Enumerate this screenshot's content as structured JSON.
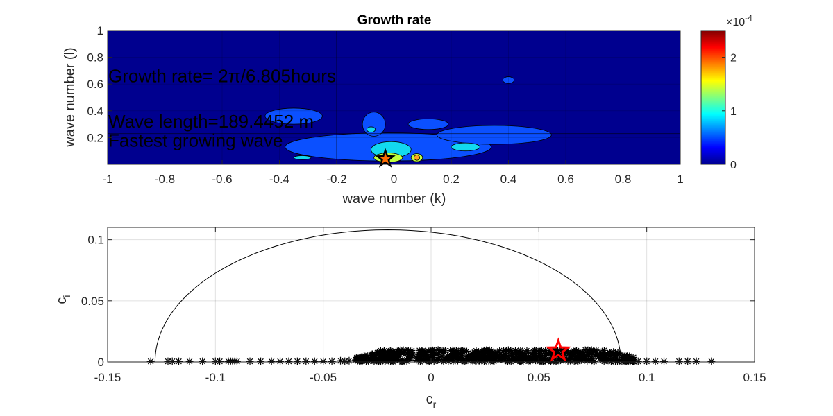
{
  "chart_data": [
    {
      "type": "heatmap",
      "subtype": "filled-contour",
      "title": "Growth rate",
      "xlabel": "wave number (k)",
      "ylabel": "wave number (l)",
      "xlim": [
        -1,
        1
      ],
      "ylim": [
        0,
        1
      ],
      "xticks": [
        "-1",
        "-0.8",
        "-0.6",
        "-0.4",
        "-0.2",
        "0",
        "0.2",
        "0.4",
        "0.6",
        "0.8",
        "1"
      ],
      "yticks": [
        "0.2",
        "0.4",
        "0.6",
        "0.8",
        "1"
      ],
      "grid": true,
      "colormap": "jet",
      "background_color": "#00008f",
      "colorbar": {
        "range": [
          0,
          2.5
        ],
        "ticks": [
          "0",
          "1",
          "2"
        ],
        "exponent_label": "×10",
        "exponent": "-4"
      },
      "contour_levels": [
        {
          "level": 0.3,
          "color": "#0b50ff",
          "regions": [
            {
              "kx": -0.02,
              "ly": 0.13,
              "rk": 0.36,
              "rl": 0.105
            },
            {
              "kx": -0.35,
              "ly": 0.36,
              "rk": 0.1,
              "rl": 0.06
            },
            {
              "kx": -0.07,
              "ly": 0.3,
              "rk": 0.04,
              "rl": 0.09
            },
            {
              "kx": 0.35,
              "ly": 0.22,
              "rk": 0.2,
              "rl": 0.07
            },
            {
              "kx": 0.12,
              "ly": 0.3,
              "rk": 0.07,
              "rl": 0.04
            },
            {
              "kx": 0.4,
              "ly": 0.63,
              "rk": 0.02,
              "rl": 0.025
            }
          ]
        },
        {
          "level": 0.8,
          "color": "#12d9ef",
          "regions": [
            {
              "kx": -0.01,
              "ly": 0.11,
              "rk": 0.07,
              "rl": 0.06
            },
            {
              "kx": 0.25,
              "ly": 0.13,
              "rk": 0.05,
              "rl": 0.03
            },
            {
              "kx": -0.08,
              "ly": 0.26,
              "rk": 0.015,
              "rl": 0.02
            },
            {
              "kx": -0.32,
              "ly": 0.05,
              "rk": 0.03,
              "rl": 0.015
            }
          ]
        },
        {
          "level": 1.4,
          "color": "#bfff3f",
          "regions": [
            {
              "kx": -0.02,
              "ly": 0.05,
              "rk": 0.05,
              "rl": 0.035
            },
            {
              "kx": 0.08,
              "ly": 0.05,
              "rk": 0.02,
              "rl": 0.03
            }
          ]
        },
        {
          "level": 1.9,
          "color": "#ffa41f",
          "regions": [
            {
              "kx": -0.03,
              "ly": 0.03,
              "rk": 0.015,
              "rl": 0.02
            },
            {
              "kx": 0.08,
              "ly": 0.05,
              "rk": 0.01,
              "rl": 0.02
            }
          ]
        }
      ],
      "crosshair": {
        "k": -0.2,
        "l": 0.23
      },
      "marker": {
        "k": -0.03,
        "l": 0.02,
        "symbol": "star",
        "edge_color": "#000000",
        "fill_color": "#ff6a00"
      },
      "annotations": [
        {
          "text": "Growth rate= 2π/6.805hours",
          "k": -1.0,
          "l": 0.66
        },
        {
          "text": "Wave length=189.4452 m",
          "k": -1.0,
          "l": 0.32
        },
        {
          "text": "Fastest growing wave",
          "k": -1.0,
          "l": 0.18
        }
      ]
    },
    {
      "type": "scatter",
      "xlabel": "c",
      "xlabel_sub": "r",
      "ylabel": "c",
      "ylabel_sub": "i",
      "xlim": [
        -0.15,
        0.15
      ],
      "ylim": [
        0,
        0.11
      ],
      "xticks": [
        "-0.15",
        "-0.1",
        "-0.05",
        "0",
        "0.05",
        "0.1",
        "0.15"
      ],
      "yticks": [
        "0",
        "0.05",
        "0.1"
      ],
      "grid": true,
      "marker_symbol": "asterisk",
      "marker_color": "#000000",
      "dense_band": {
        "x_range": [
          -0.035,
          0.095
        ],
        "y_range": [
          0,
          0.01
        ]
      },
      "sparse_points": [
        [
          -0.13,
          0.0005
        ],
        [
          -0.122,
          0.0005
        ],
        [
          -0.12,
          0.0005
        ],
        [
          -0.117,
          0.0005
        ],
        [
          -0.112,
          0.0005
        ],
        [
          -0.106,
          0.0005
        ],
        [
          -0.1,
          0.0005
        ],
        [
          -0.098,
          0.0005
        ],
        [
          -0.094,
          0.0005
        ],
        [
          -0.093,
          0.0005
        ],
        [
          -0.092,
          0.0005
        ],
        [
          -0.091,
          0.0005
        ],
        [
          -0.09,
          0.0005
        ],
        [
          -0.084,
          0.0005
        ],
        [
          -0.079,
          0.0005
        ],
        [
          -0.074,
          0.0005
        ],
        [
          -0.07,
          0.0005
        ],
        [
          -0.066,
          0.0005
        ],
        [
          -0.062,
          0.0005
        ],
        [
          -0.058,
          0.0005
        ],
        [
          -0.054,
          0.0005
        ],
        [
          -0.05,
          0.0005
        ],
        [
          -0.046,
          0.0005
        ],
        [
          -0.042,
          0.001
        ],
        [
          -0.04,
          0.0005
        ],
        [
          -0.038,
          0.001
        ],
        [
          0.096,
          0.0005
        ],
        [
          0.1,
          0.0005
        ],
        [
          0.104,
          0.0005
        ],
        [
          0.108,
          0.0005
        ],
        [
          0.115,
          0.0005
        ],
        [
          0.119,
          0.0005
        ],
        [
          0.123,
          0.0005
        ],
        [
          0.13,
          0.0005
        ]
      ],
      "semicircle": {
        "center_x": -0.02,
        "radius": 0.108,
        "peak_y": 0.108
      },
      "highlight": {
        "x": 0.059,
        "y": 0.008,
        "symbol": "star",
        "edge_color": "#ff0000"
      }
    }
  ]
}
